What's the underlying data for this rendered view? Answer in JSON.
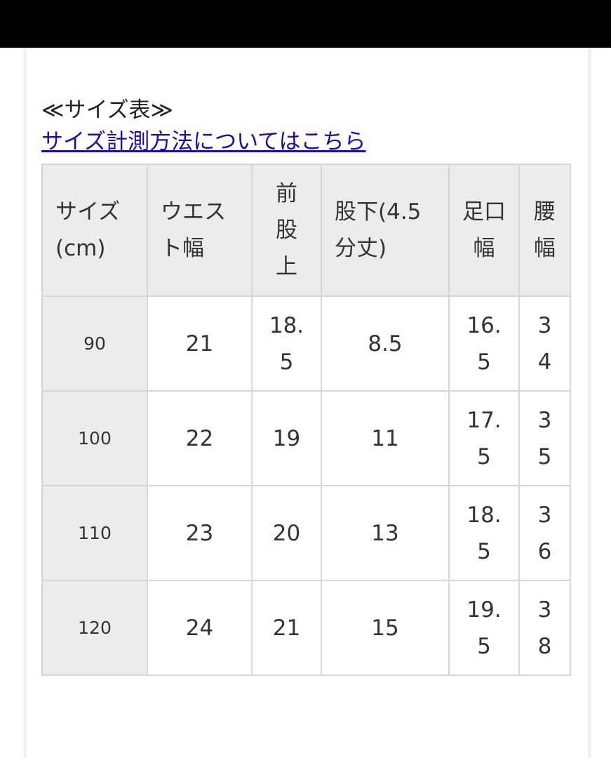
{
  "title": "≪サイズ表≫",
  "measure_link": "サイズ計測方法についてはこちら",
  "colors": {
    "header_bg": "#ececec",
    "link": "#1a0dab",
    "border": "#d6d6d6"
  },
  "table": {
    "headers": [
      "サイズ\n(cm)",
      "ウエスト幅",
      "前股上",
      "股下(4.5分丈)",
      "足口幅",
      "腰幅"
    ],
    "rows": [
      [
        "90",
        "21",
        "18.5",
        "8.5",
        "16.5",
        "34"
      ],
      [
        "100",
        "22",
        "19",
        "11",
        "17.5",
        "35"
      ],
      [
        "110",
        "23",
        "20",
        "13",
        "18.5",
        "36"
      ],
      [
        "120",
        "24",
        "21",
        "15",
        "19.5",
        "38"
      ]
    ]
  }
}
